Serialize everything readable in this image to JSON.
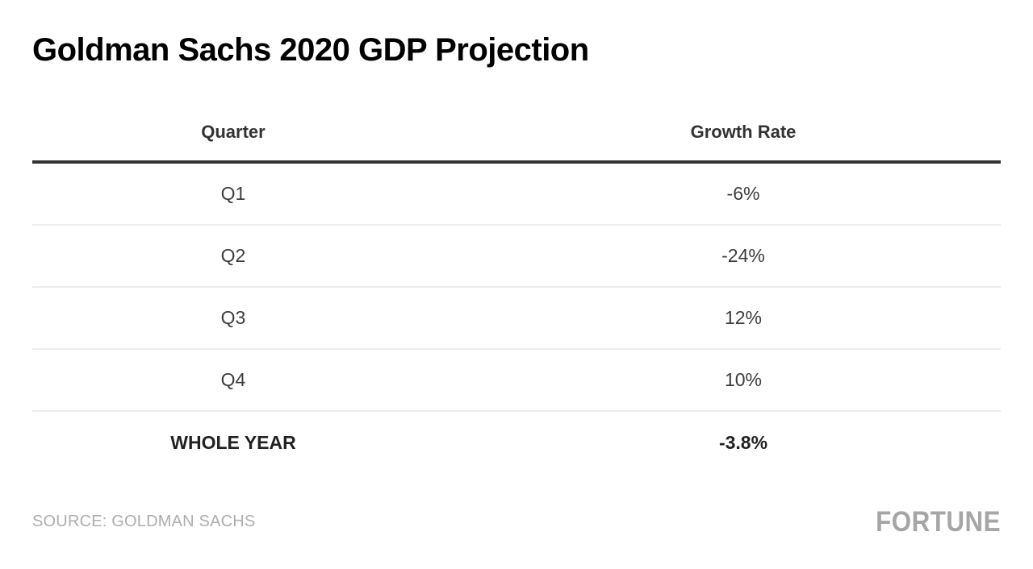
{
  "title": "Goldman Sachs 2020 GDP Projection",
  "table": {
    "columns": [
      "Quarter",
      "Growth Rate"
    ],
    "rows": [
      {
        "quarter": "Q1",
        "rate": "-6%"
      },
      {
        "quarter": "Q2",
        "rate": "-24%"
      },
      {
        "quarter": "Q3",
        "rate": "12%"
      },
      {
        "quarter": "Q4",
        "rate": "10%"
      },
      {
        "quarter": "WHOLE YEAR",
        "rate": "-3.8%"
      }
    ]
  },
  "footer": {
    "source": "SOURCE: GOLDMAN SACHS",
    "brand": "FORTUNE"
  },
  "colors": {
    "title_text": "#000000",
    "header_rule": "#333333",
    "row_divider": "#ececec",
    "body_text": "#3d3d3d",
    "muted_text": "#aeaeae",
    "brand_gray": "#a6a6a6"
  },
  "chart_data": {
    "type": "table",
    "title": "Goldman Sachs 2020 GDP Projection",
    "columns": [
      "Quarter",
      "Growth Rate"
    ],
    "categories": [
      "Q1",
      "Q2",
      "Q3",
      "Q4",
      "WHOLE YEAR"
    ],
    "values": [
      -6,
      -24,
      12,
      10,
      -3.8
    ],
    "unit": "%",
    "source": "Goldman Sachs"
  }
}
